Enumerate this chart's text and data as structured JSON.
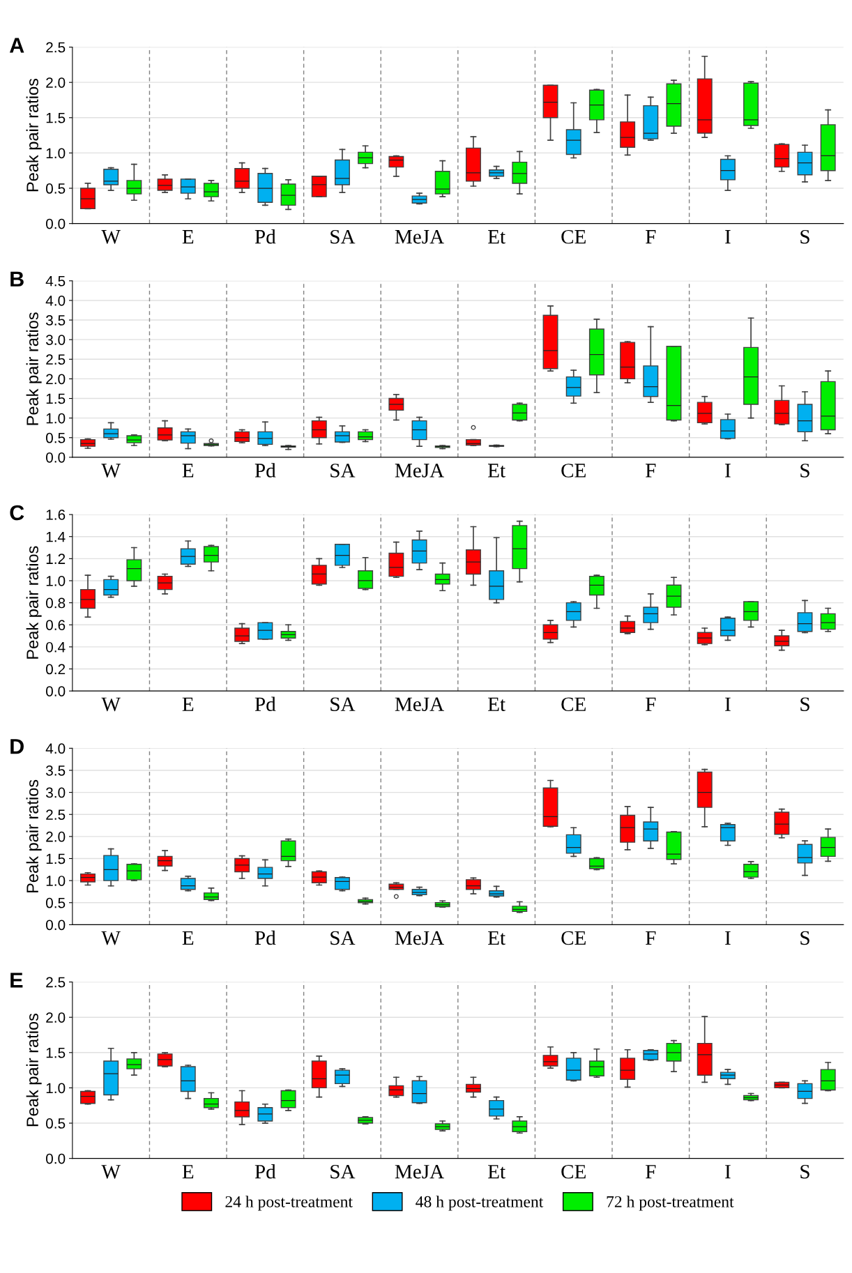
{
  "chart_data": [
    {
      "type": "box",
      "title": "A",
      "ylabel": "Peak pair ratios",
      "categories": [
        "W",
        "E",
        "Pd",
        "SA",
        "MeJA",
        "Et",
        "CE",
        "F",
        "I",
        "S"
      ],
      "ylim": [
        0,
        2.5
      ],
      "yticks": [
        {
          "value": 0,
          "label": "0.0"
        },
        0.5,
        {
          "value": 1,
          "label": "1.0"
        },
        1.5,
        {
          "value": 2,
          "label": "2.0"
        },
        2.5
      ],
      "grid": "y",
      "series": [
        {
          "color": "#ff0000",
          "boxes": [
            {
              "low": 0.21,
              "q1": 0.21,
              "median": 0.35,
              "q3": 0.5,
              "high": 0.57
            },
            {
              "low": 0.44,
              "q1": 0.47,
              "median": 0.54,
              "q3": 0.63,
              "high": 0.69
            },
            {
              "low": 0.44,
              "q1": 0.5,
              "median": 0.6,
              "q3": 0.78,
              "high": 0.86
            },
            {
              "low": 0.38,
              "q1": 0.38,
              "median": 0.55,
              "q3": 0.67,
              "high": 0.67
            },
            {
              "low": 0.67,
              "q1": 0.8,
              "median": 0.9,
              "q3": 0.95,
              "high": 0.96
            },
            {
              "low": 0.53,
              "q1": 0.6,
              "median": 0.72,
              "q3": 1.07,
              "high": 1.23
            },
            {
              "low": 1.18,
              "q1": 1.5,
              "median": 1.72,
              "q3": 1.96,
              "high": 1.96
            },
            {
              "low": 0.97,
              "q1": 1.08,
              "median": 1.22,
              "q3": 1.44,
              "high": 1.82
            },
            {
              "low": 1.22,
              "q1": 1.28,
              "median": 1.47,
              "q3": 2.05,
              "high": 2.37
            },
            {
              "low": 0.74,
              "q1": 0.8,
              "median": 0.92,
              "q3": 1.12,
              "high": 1.13
            }
          ]
        },
        {
          "color": "#00b0f0",
          "boxes": [
            {
              "low": 0.47,
              "q1": 0.55,
              "median": 0.6,
              "q3": 0.77,
              "high": 0.79
            },
            {
              "low": 0.35,
              "q1": 0.43,
              "median": 0.52,
              "q3": 0.63,
              "high": 0.63
            },
            {
              "low": 0.26,
              "q1": 0.3,
              "median": 0.5,
              "q3": 0.71,
              "high": 0.78
            },
            {
              "low": 0.44,
              "q1": 0.55,
              "median": 0.64,
              "q3": 0.9,
              "high": 1.05
            },
            {
              "low": 0.28,
              "q1": 0.29,
              "median": 0.34,
              "q3": 0.39,
              "high": 0.43
            },
            {
              "low": 0.64,
              "q1": 0.67,
              "median": 0.72,
              "q3": 0.76,
              "high": 0.81
            },
            {
              "low": 0.93,
              "q1": 0.98,
              "median": 1.18,
              "q3": 1.33,
              "high": 1.71
            },
            {
              "low": 1.18,
              "q1": 1.2,
              "median": 1.28,
              "q3": 1.67,
              "high": 1.79
            },
            {
              "low": 0.47,
              "q1": 0.62,
              "median": 0.75,
              "q3": 0.91,
              "high": 0.96
            },
            {
              "low": 0.59,
              "q1": 0.69,
              "median": 0.86,
              "q3": 1.01,
              "high": 1.11
            }
          ]
        },
        {
          "color": "#00ee00",
          "boxes": [
            {
              "low": 0.33,
              "q1": 0.42,
              "median": 0.5,
              "q3": 0.61,
              "high": 0.84
            },
            {
              "low": 0.32,
              "q1": 0.38,
              "median": 0.45,
              "q3": 0.57,
              "high": 0.61
            },
            {
              "low": 0.2,
              "q1": 0.26,
              "median": 0.4,
              "q3": 0.56,
              "high": 0.62
            },
            {
              "low": 0.79,
              "q1": 0.85,
              "median": 0.93,
              "q3": 1.01,
              "high": 1.1
            },
            {
              "low": 0.38,
              "q1": 0.42,
              "median": 0.49,
              "q3": 0.74,
              "high": 0.89
            },
            {
              "low": 0.42,
              "q1": 0.57,
              "median": 0.71,
              "q3": 0.87,
              "high": 1.02
            },
            {
              "low": 1.29,
              "q1": 1.47,
              "median": 1.68,
              "q3": 1.89,
              "high": 1.9
            },
            {
              "low": 1.28,
              "q1": 1.38,
              "median": 1.7,
              "q3": 1.98,
              "high": 2.03
            },
            {
              "low": 1.35,
              "q1": 1.39,
              "median": 1.47,
              "q3": 1.99,
              "high": 2.01
            },
            {
              "low": 0.61,
              "q1": 0.75,
              "median": 0.96,
              "q3": 1.4,
              "high": 1.61
            }
          ]
        }
      ]
    },
    {
      "type": "box",
      "title": "B",
      "ylabel": "Peak pair ratios",
      "categories": [
        "W",
        "E",
        "Pd",
        "SA",
        "MeJA",
        "Et",
        "CE",
        "F",
        "I",
        "S"
      ],
      "ylim": [
        0,
        4.5
      ],
      "yticks": [
        {
          "value": 0,
          "label": "0.0"
        },
        0.5,
        {
          "value": 1,
          "label": "1.0"
        },
        1.5,
        {
          "value": 2,
          "label": "2.0"
        },
        2.5,
        {
          "value": 3,
          "label": "3.0"
        },
        3.5,
        {
          "value": 4,
          "label": "4.0"
        },
        4.5
      ],
      "grid": "y",
      "series": [
        {
          "color": "#ff0000",
          "boxes": [
            {
              "low": 0.23,
              "q1": 0.28,
              "median": 0.35,
              "q3": 0.45,
              "high": 0.47
            },
            {
              "low": 0.42,
              "q1": 0.44,
              "median": 0.57,
              "q3": 0.75,
              "high": 0.93
            },
            {
              "low": 0.37,
              "q1": 0.4,
              "median": 0.5,
              "q3": 0.65,
              "high": 0.7
            },
            {
              "low": 0.34,
              "q1": 0.5,
              "median": 0.7,
              "q3": 0.93,
              "high": 1.02
            },
            {
              "low": 0.95,
              "q1": 1.2,
              "median": 1.35,
              "q3": 1.5,
              "high": 1.6
            },
            {
              "low": 0.3,
              "q1": 0.31,
              "median": 0.35,
              "q3": 0.45,
              "high": 0.45,
              "outliers": [
                0.76
              ]
            },
            {
              "low": 2.2,
              "q1": 2.26,
              "median": 2.72,
              "q3": 3.62,
              "high": 3.86
            },
            {
              "low": 1.9,
              "q1": 2.0,
              "median": 2.3,
              "q3": 2.93,
              "high": 2.95
            },
            {
              "low": 0.85,
              "q1": 0.88,
              "median": 1.12,
              "q3": 1.4,
              "high": 1.55
            },
            {
              "low": 0.83,
              "q1": 0.85,
              "median": 1.12,
              "q3": 1.45,
              "high": 1.82
            }
          ]
        },
        {
          "color": "#00b0f0",
          "boxes": [
            {
              "low": 0.46,
              "q1": 0.5,
              "median": 0.6,
              "q3": 0.72,
              "high": 0.88
            },
            {
              "low": 0.22,
              "q1": 0.36,
              "median": 0.55,
              "q3": 0.65,
              "high": 0.72
            },
            {
              "low": 0.3,
              "q1": 0.33,
              "median": 0.48,
              "q3": 0.65,
              "high": 0.9
            },
            {
              "low": 0.38,
              "q1": 0.39,
              "median": 0.55,
              "q3": 0.65,
              "high": 0.8
            },
            {
              "low": 0.28,
              "q1": 0.45,
              "median": 0.7,
              "q3": 0.93,
              "high": 1.02
            },
            {
              "low": 0.27,
              "q1": 0.28,
              "median": 0.29,
              "q3": 0.3,
              "high": 0.31
            },
            {
              "low": 1.38,
              "q1": 1.56,
              "median": 1.78,
              "q3": 2.05,
              "high": 2.22
            },
            {
              "low": 1.4,
              "q1": 1.55,
              "median": 1.8,
              "q3": 2.33,
              "high": 3.33
            },
            {
              "low": 0.47,
              "q1": 0.48,
              "median": 0.67,
              "q3": 0.96,
              "high": 1.1
            },
            {
              "low": 0.42,
              "q1": 0.65,
              "median": 0.93,
              "q3": 1.35,
              "high": 1.67
            }
          ]
        },
        {
          "color": "#00ee00",
          "boxes": [
            {
              "low": 0.3,
              "q1": 0.37,
              "median": 0.44,
              "q3": 0.55,
              "high": 0.57
            },
            {
              "low": 0.29,
              "q1": 0.3,
              "median": 0.32,
              "q3": 0.35,
              "high": 0.35,
              "outliers": [
                0.42
              ]
            },
            {
              "low": 0.2,
              "q1": 0.26,
              "median": 0.27,
              "q3": 0.29,
              "high": 0.3
            },
            {
              "low": 0.4,
              "q1": 0.45,
              "median": 0.52,
              "q3": 0.65,
              "high": 0.7
            },
            {
              "low": 0.22,
              "q1": 0.25,
              "median": 0.27,
              "q3": 0.29,
              "high": 0.3
            },
            {
              "low": 0.93,
              "q1": 0.95,
              "median": 1.13,
              "q3": 1.35,
              "high": 1.38
            },
            {
              "low": 1.65,
              "q1": 2.1,
              "median": 2.62,
              "q3": 3.27,
              "high": 3.52
            },
            {
              "low": 0.93,
              "q1": 0.95,
              "median": 1.32,
              "q3": 2.83,
              "high": 2.83
            },
            {
              "low": 1.0,
              "q1": 1.35,
              "median": 2.05,
              "q3": 2.8,
              "high": 3.55
            },
            {
              "low": 0.6,
              "q1": 0.7,
              "median": 1.05,
              "q3": 1.93,
              "high": 2.2
            }
          ]
        }
      ]
    },
    {
      "type": "box",
      "title": "C",
      "ylabel": "Peak pair ratios",
      "categories": [
        "W",
        "E",
        "Pd",
        "SA",
        "MeJA",
        "Et",
        "CE",
        "F",
        "I",
        "S"
      ],
      "ylim": [
        0,
        1.6
      ],
      "yticks": [
        {
          "value": 0,
          "label": "0.0"
        },
        0.2,
        0.4,
        0.6,
        0.8,
        {
          "value": 1,
          "label": "1.0"
        },
        1.2,
        1.4,
        1.6
      ],
      "grid": "y",
      "series": [
        {
          "color": "#ff0000",
          "boxes": [
            {
              "low": 0.67,
              "q1": 0.75,
              "median": 0.83,
              "q3": 0.92,
              "high": 1.05
            },
            {
              "low": 0.88,
              "q1": 0.92,
              "median": 0.98,
              "q3": 1.04,
              "high": 1.06
            },
            {
              "low": 0.43,
              "q1": 0.45,
              "median": 0.5,
              "q3": 0.57,
              "high": 0.61
            },
            {
              "low": 0.96,
              "q1": 0.97,
              "median": 1.06,
              "q3": 1.14,
              "high": 1.2
            },
            {
              "low": 1.03,
              "q1": 1.04,
              "median": 1.12,
              "q3": 1.25,
              "high": 1.35
            },
            {
              "low": 0.96,
              "q1": 1.06,
              "median": 1.17,
              "q3": 1.28,
              "high": 1.49
            },
            {
              "low": 0.44,
              "q1": 0.47,
              "median": 0.53,
              "q3": 0.6,
              "high": 0.64
            },
            {
              "low": 0.52,
              "q1": 0.53,
              "median": 0.57,
              "q3": 0.63,
              "high": 0.68
            },
            {
              "low": 0.42,
              "q1": 0.43,
              "median": 0.48,
              "q3": 0.53,
              "high": 0.57
            },
            {
              "low": 0.37,
              "q1": 0.41,
              "median": 0.45,
              "q3": 0.5,
              "high": 0.55
            }
          ]
        },
        {
          "color": "#00b0f0",
          "boxes": [
            {
              "low": 0.85,
              "q1": 0.87,
              "median": 0.92,
              "q3": 1.01,
              "high": 1.04
            },
            {
              "low": 1.13,
              "q1": 1.15,
              "median": 1.22,
              "q3": 1.29,
              "high": 1.36
            },
            {
              "low": 0.47,
              "q1": 0.47,
              "median": 0.55,
              "q3": 0.62,
              "high": 0.62
            },
            {
              "low": 1.12,
              "q1": 1.14,
              "median": 1.23,
              "q3": 1.33,
              "high": 1.33
            },
            {
              "low": 1.1,
              "q1": 1.16,
              "median": 1.27,
              "q3": 1.37,
              "high": 1.45
            },
            {
              "low": 0.8,
              "q1": 0.83,
              "median": 0.95,
              "q3": 1.09,
              "high": 1.39
            },
            {
              "low": 0.58,
              "q1": 0.64,
              "median": 0.72,
              "q3": 0.8,
              "high": 0.81
            },
            {
              "low": 0.56,
              "q1": 0.62,
              "median": 0.7,
              "q3": 0.76,
              "high": 0.88
            },
            {
              "low": 0.46,
              "q1": 0.5,
              "median": 0.55,
              "q3": 0.66,
              "high": 0.67
            },
            {
              "low": 0.53,
              "q1": 0.54,
              "median": 0.61,
              "q3": 0.71,
              "high": 0.82
            }
          ]
        },
        {
          "color": "#00ee00",
          "boxes": [
            {
              "low": 0.95,
              "q1": 1.0,
              "median": 1.11,
              "q3": 1.19,
              "high": 1.3
            },
            {
              "low": 1.09,
              "q1": 1.17,
              "median": 1.23,
              "q3": 1.31,
              "high": 1.32
            },
            {
              "low": 0.46,
              "q1": 0.48,
              "median": 0.51,
              "q3": 0.54,
              "high": 0.6
            },
            {
              "low": 0.92,
              "q1": 0.93,
              "median": 1.0,
              "q3": 1.09,
              "high": 1.21
            },
            {
              "low": 0.91,
              "q1": 0.97,
              "median": 1.01,
              "q3": 1.06,
              "high": 1.16
            },
            {
              "low": 0.99,
              "q1": 1.11,
              "median": 1.29,
              "q3": 1.5,
              "high": 1.54
            },
            {
              "low": 0.75,
              "q1": 0.87,
              "median": 0.96,
              "q3": 1.04,
              "high": 1.05
            },
            {
              "low": 0.69,
              "q1": 0.76,
              "median": 0.86,
              "q3": 0.96,
              "high": 1.03
            },
            {
              "low": 0.58,
              "q1": 0.64,
              "median": 0.72,
              "q3": 0.81,
              "high": 0.81
            },
            {
              "low": 0.54,
              "q1": 0.56,
              "median": 0.62,
              "q3": 0.7,
              "high": 0.75
            }
          ]
        }
      ]
    },
    {
      "type": "box",
      "title": "D",
      "ylabel": "Peak pair ratios",
      "categories": [
        "W",
        "E",
        "Pd",
        "SA",
        "MeJA",
        "Et",
        "CE",
        "F",
        "I",
        "S"
      ],
      "ylim": [
        0,
        4
      ],
      "yticks": [
        {
          "value": 0,
          "label": "0.0"
        },
        0.5,
        {
          "value": 1,
          "label": "1.0"
        },
        1.5,
        {
          "value": 2,
          "label": "2.0"
        },
        2.5,
        {
          "value": 3,
          "label": "3.0"
        },
        3.5,
        {
          "value": 4,
          "label": "4.0"
        }
      ],
      "grid": "y",
      "series": [
        {
          "color": "#ff0000",
          "boxes": [
            {
              "low": 0.9,
              "q1": 0.97,
              "median": 1.07,
              "q3": 1.15,
              "high": 1.18
            },
            {
              "low": 1.23,
              "q1": 1.33,
              "median": 1.45,
              "q3": 1.55,
              "high": 1.68
            },
            {
              "low": 1.05,
              "q1": 1.2,
              "median": 1.35,
              "q3": 1.5,
              "high": 1.56
            },
            {
              "low": 0.9,
              "q1": 0.95,
              "median": 1.08,
              "q3": 1.2,
              "high": 1.22
            },
            {
              "low": 0.8,
              "q1": 0.8,
              "median": 0.85,
              "q3": 0.92,
              "high": 0.95,
              "outliers": [
                0.64
              ]
            },
            {
              "low": 0.7,
              "q1": 0.8,
              "median": 0.88,
              "q3": 1.02,
              "high": 1.06
            },
            {
              "low": 2.22,
              "q1": 2.23,
              "median": 2.45,
              "q3": 3.1,
              "high": 3.27
            },
            {
              "low": 1.7,
              "q1": 1.87,
              "median": 2.2,
              "q3": 2.48,
              "high": 2.68
            },
            {
              "low": 2.22,
              "q1": 2.66,
              "median": 3.0,
              "q3": 3.46,
              "high": 3.52
            },
            {
              "low": 1.97,
              "q1": 2.05,
              "median": 2.28,
              "q3": 2.55,
              "high": 2.62
            }
          ]
        },
        {
          "color": "#00b0f0",
          "boxes": [
            {
              "low": 0.88,
              "q1": 1.0,
              "median": 1.25,
              "q3": 1.57,
              "high": 1.72
            },
            {
              "low": 0.77,
              "q1": 0.8,
              "median": 0.88,
              "q3": 1.05,
              "high": 1.1
            },
            {
              "low": 0.88,
              "q1": 1.05,
              "median": 1.15,
              "q3": 1.3,
              "high": 1.47
            },
            {
              "low": 0.77,
              "q1": 0.8,
              "median": 0.98,
              "q3": 1.07,
              "high": 1.08
            },
            {
              "low": 0.66,
              "q1": 0.68,
              "median": 0.73,
              "q3": 0.8,
              "high": 0.85
            },
            {
              "low": 0.63,
              "q1": 0.65,
              "median": 0.7,
              "q3": 0.77,
              "high": 0.87
            },
            {
              "low": 1.55,
              "q1": 1.62,
              "median": 1.75,
              "q3": 2.04,
              "high": 2.2
            },
            {
              "low": 1.73,
              "q1": 1.9,
              "median": 2.17,
              "q3": 2.33,
              "high": 2.66
            },
            {
              "low": 1.8,
              "q1": 1.9,
              "median": 2.2,
              "q3": 2.27,
              "high": 2.3
            },
            {
              "low": 1.12,
              "q1": 1.4,
              "median": 1.52,
              "q3": 1.82,
              "high": 1.9
            }
          ]
        },
        {
          "color": "#00ee00",
          "boxes": [
            {
              "low": 1.0,
              "q1": 1.02,
              "median": 1.22,
              "q3": 1.37,
              "high": 1.38
            },
            {
              "low": 0.55,
              "q1": 0.57,
              "median": 0.63,
              "q3": 0.72,
              "high": 0.83
            },
            {
              "low": 1.32,
              "q1": 1.45,
              "median": 1.55,
              "q3": 1.9,
              "high": 1.94
            },
            {
              "low": 0.47,
              "q1": 0.5,
              "median": 0.53,
              "q3": 0.57,
              "high": 0.6
            },
            {
              "low": 0.4,
              "q1": 0.41,
              "median": 0.45,
              "q3": 0.5,
              "high": 0.54
            },
            {
              "low": 0.28,
              "q1": 0.3,
              "median": 0.35,
              "q3": 0.42,
              "high": 0.52
            },
            {
              "low": 1.25,
              "q1": 1.27,
              "median": 1.33,
              "q3": 1.5,
              "high": 1.52
            },
            {
              "low": 1.38,
              "q1": 1.48,
              "median": 1.6,
              "q3": 2.1,
              "high": 2.11
            },
            {
              "low": 1.05,
              "q1": 1.08,
              "median": 1.2,
              "q3": 1.37,
              "high": 1.43
            },
            {
              "low": 1.44,
              "q1": 1.55,
              "median": 1.75,
              "q3": 1.98,
              "high": 2.17
            }
          ]
        }
      ]
    },
    {
      "type": "box",
      "title": "E",
      "ylabel": "Peak pair ratios",
      "categories": [
        "W",
        "E",
        "Pd",
        "SA",
        "MeJA",
        "Et",
        "CE",
        "F",
        "I",
        "S"
      ],
      "ylim": [
        0,
        2.5
      ],
      "yticks": [
        {
          "value": 0,
          "label": "0.0"
        },
        0.5,
        {
          "value": 1,
          "label": "1.0"
        },
        1.5,
        {
          "value": 2,
          "label": "2.0"
        },
        2.5
      ],
      "grid": "y",
      "legend": "bottom",
      "series": [
        {
          "name": "24 h post-treatment",
          "color": "#ff0000",
          "boxes": [
            {
              "low": 0.77,
              "q1": 0.78,
              "median": 0.88,
              "q3": 0.95,
              "high": 0.96
            },
            {
              "low": 1.3,
              "q1": 1.31,
              "median": 1.4,
              "q3": 1.48,
              "high": 1.5
            },
            {
              "low": 0.48,
              "q1": 0.59,
              "median": 0.68,
              "q3": 0.8,
              "high": 0.96
            },
            {
              "low": 0.87,
              "q1": 1.0,
              "median": 1.13,
              "q3": 1.38,
              "high": 1.45
            },
            {
              "low": 0.87,
              "q1": 0.89,
              "median": 0.97,
              "q3": 1.03,
              "high": 1.15
            },
            {
              "low": 0.87,
              "q1": 0.94,
              "median": 0.99,
              "q3": 1.05,
              "high": 1.15
            },
            {
              "low": 1.28,
              "q1": 1.31,
              "median": 1.37,
              "q3": 1.46,
              "high": 1.58
            },
            {
              "low": 1.01,
              "q1": 1.12,
              "median": 1.25,
              "q3": 1.42,
              "high": 1.54
            },
            {
              "low": 1.08,
              "q1": 1.18,
              "median": 1.47,
              "q3": 1.63,
              "high": 2.01
            },
            {
              "low": 1.0,
              "q1": 1.0,
              "median": 1.04,
              "q3": 1.08,
              "high": 1.08
            }
          ]
        },
        {
          "name": "48 h post-treatment",
          "color": "#00b0f0",
          "boxes": [
            {
              "low": 0.83,
              "q1": 0.9,
              "median": 1.2,
              "q3": 1.38,
              "high": 1.56
            },
            {
              "low": 0.85,
              "q1": 0.95,
              "median": 1.1,
              "q3": 1.3,
              "high": 1.32
            },
            {
              "low": 0.5,
              "q1": 0.53,
              "median": 0.63,
              "q3": 0.72,
              "high": 0.77
            },
            {
              "low": 1.02,
              "q1": 1.06,
              "median": 1.18,
              "q3": 1.25,
              "high": 1.27
            },
            {
              "low": 0.78,
              "q1": 0.79,
              "median": 0.92,
              "q3": 1.1,
              "high": 1.16
            },
            {
              "low": 0.56,
              "q1": 0.6,
              "median": 0.7,
              "q3": 0.82,
              "high": 0.87
            },
            {
              "low": 1.1,
              "q1": 1.11,
              "median": 1.25,
              "q3": 1.42,
              "high": 1.5
            },
            {
              "low": 1.39,
              "q1": 1.4,
              "median": 1.48,
              "q3": 1.53,
              "high": 1.54
            },
            {
              "low": 1.05,
              "q1": 1.13,
              "median": 1.18,
              "q3": 1.22,
              "high": 1.26
            },
            {
              "low": 0.78,
              "q1": 0.85,
              "median": 0.95,
              "q3": 1.06,
              "high": 1.1
            }
          ]
        },
        {
          "name": "72 h post-treatment",
          "color": "#00ee00",
          "boxes": [
            {
              "low": 1.18,
              "q1": 1.27,
              "median": 1.33,
              "q3": 1.41,
              "high": 1.5
            },
            {
              "low": 0.7,
              "q1": 0.72,
              "median": 0.77,
              "q3": 0.85,
              "high": 0.93
            },
            {
              "low": 0.68,
              "q1": 0.72,
              "median": 0.82,
              "q3": 0.96,
              "high": 0.97
            },
            {
              "low": 0.49,
              "q1": 0.5,
              "median": 0.54,
              "q3": 0.58,
              "high": 0.59
            },
            {
              "low": 0.39,
              "q1": 0.41,
              "median": 0.45,
              "q3": 0.49,
              "high": 0.53
            },
            {
              "low": 0.36,
              "q1": 0.38,
              "median": 0.45,
              "q3": 0.53,
              "high": 0.59
            },
            {
              "low": 1.15,
              "q1": 1.17,
              "median": 1.3,
              "q3": 1.38,
              "high": 1.55
            },
            {
              "low": 1.23,
              "q1": 1.38,
              "median": 1.5,
              "q3": 1.63,
              "high": 1.67
            },
            {
              "low": 0.82,
              "q1": 0.83,
              "median": 0.86,
              "q3": 0.89,
              "high": 0.92
            },
            {
              "low": 0.96,
              "q1": 0.97,
              "median": 1.1,
              "q3": 1.26,
              "high": 1.36
            }
          ]
        }
      ]
    }
  ]
}
